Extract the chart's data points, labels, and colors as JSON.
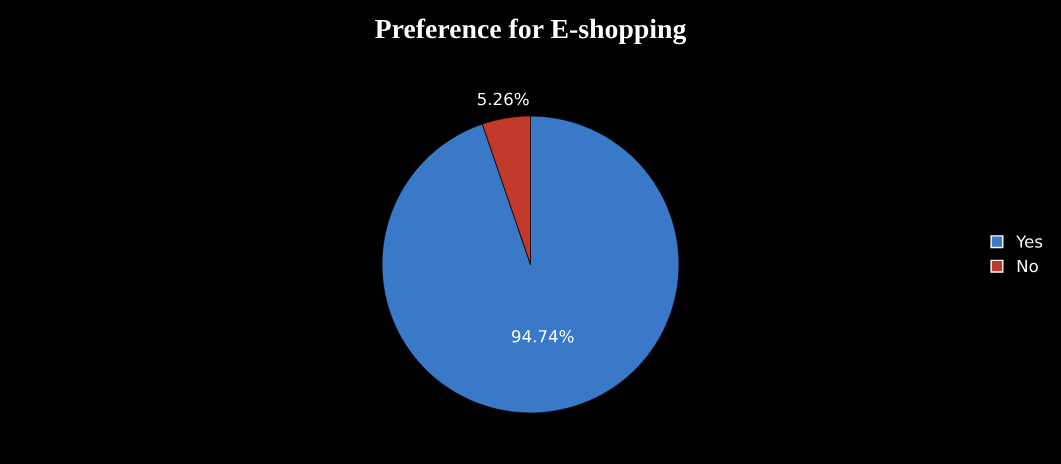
{
  "chart_data": {
    "type": "pie",
    "title": "Preference for E-shopping",
    "categories": [
      "Yes",
      "No"
    ],
    "values": [
      94.74,
      5.26
    ],
    "colors": [
      "#3a78c8",
      "#c0392b"
    ],
    "value_labels": [
      "94.74%",
      "5.26%"
    ],
    "legend": "right"
  }
}
